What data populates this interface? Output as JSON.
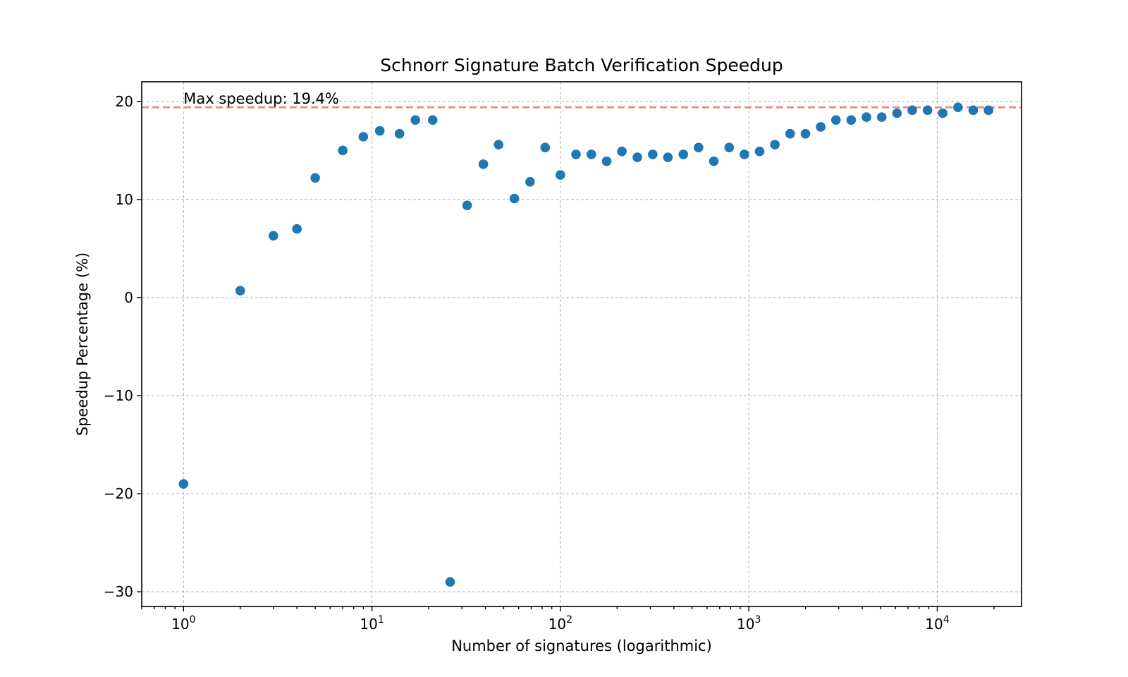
{
  "chart_data": {
    "type": "scatter",
    "title": "Schnorr Signature Batch Verification Speedup",
    "xlabel": "Number of signatures (logarithmic)",
    "ylabel": "Speedup Percentage (%)",
    "xscale": "log",
    "xlim": [
      0.6,
      28000
    ],
    "ylim": [
      -31.5,
      22
    ],
    "grid": true,
    "x_ticks": [
      {
        "value": 1,
        "base": "10",
        "exp": "0"
      },
      {
        "value": 10,
        "base": "10",
        "exp": "1"
      },
      {
        "value": 100,
        "base": "10",
        "exp": "2"
      },
      {
        "value": 1000,
        "base": "10",
        "exp": "3"
      },
      {
        "value": 10000,
        "base": "10",
        "exp": "4"
      }
    ],
    "y_ticks": [
      {
        "value": 20,
        "label": "20"
      },
      {
        "value": 10,
        "label": "10"
      },
      {
        "value": 0,
        "label": "0"
      },
      {
        "value": -10,
        "label": "−10"
      },
      {
        "value": -20,
        "label": "−20"
      },
      {
        "value": -30,
        "label": "−30"
      }
    ],
    "series": [
      {
        "color": "#1f77b4",
        "x": [
          1,
          2,
          3,
          4,
          5,
          7,
          9,
          11,
          14,
          17,
          21,
          26,
          32,
          39,
          47,
          57,
          69,
          83,
          100,
          121,
          146,
          176,
          212,
          256,
          309,
          372,
          449,
          541,
          652,
          786,
          947,
          1141,
          1375,
          1657,
          1997,
          2406,
          2899,
          3493,
          4209,
          5072,
          6111,
          7363,
          8873,
          10691,
          12882,
          15522,
          18703
        ],
        "y": [
          -19,
          0.7,
          6.3,
          7,
          12.2,
          15,
          16.4,
          17,
          16.7,
          18.1,
          18.1,
          -29,
          9.4,
          13.6,
          15.6,
          10.1,
          11.8,
          15.3,
          12.5,
          14.6,
          14.6,
          13.9,
          14.9,
          14.3,
          14.6,
          14.3,
          14.6,
          15.3,
          13.9,
          15.3,
          14.6,
          14.9,
          15.6,
          16.7,
          16.7,
          17.4,
          18.1,
          18.1,
          18.4,
          18.4,
          18.8,
          19.1,
          19.1,
          18.8,
          19.4,
          19.1,
          19.1
        ]
      }
    ],
    "reference_line": {
      "y": 19.4,
      "color": "#f28080",
      "style": "dashed"
    },
    "annotation": {
      "text": "Max speedup: 19.4%",
      "x": 1,
      "y": 19.4
    }
  }
}
